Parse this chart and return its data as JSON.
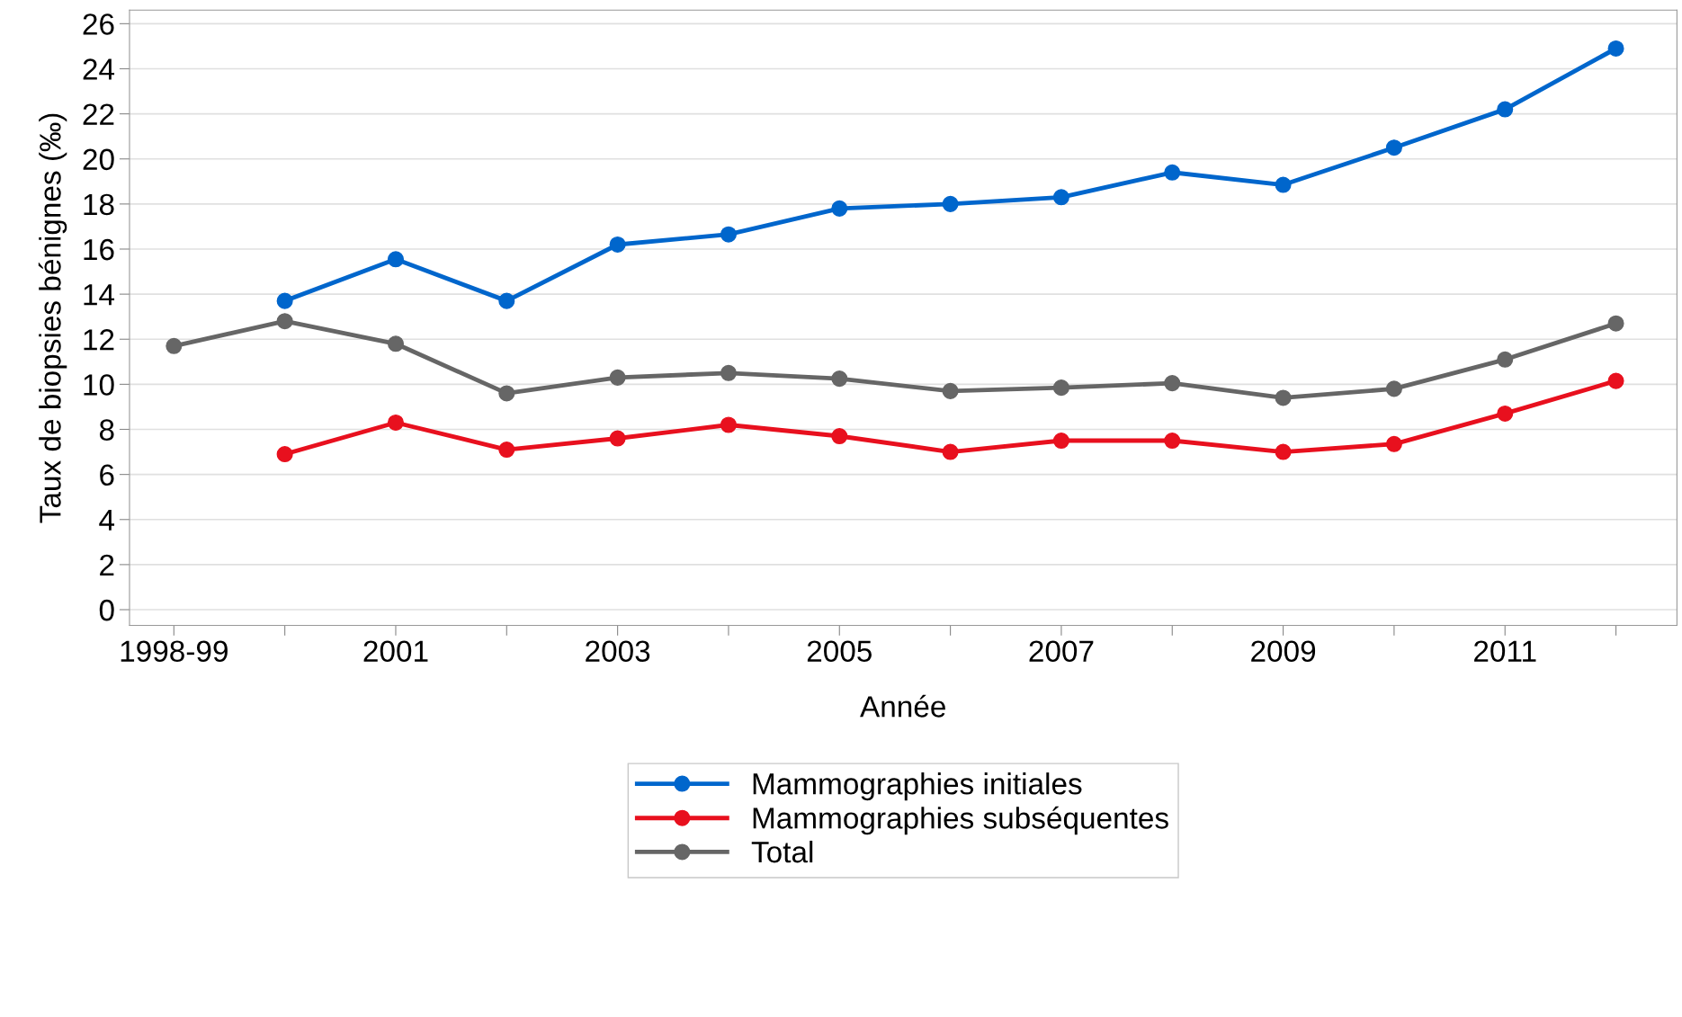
{
  "chart_data": {
    "type": "line",
    "xlabel": "Année",
    "ylabel": "Taux de biopsies bénignes (‰)",
    "categories": [
      "1998-99",
      null,
      "2001",
      null,
      "2003",
      null,
      "2005",
      null,
      "2007",
      null,
      "2009",
      null,
      "2011",
      null
    ],
    "series": [
      {
        "name": "Mammographies initiales",
        "color": "#0066cc",
        "values": [
          null,
          13.7,
          15.55,
          13.7,
          16.2,
          16.65,
          17.8,
          18.0,
          18.3,
          19.4,
          18.85,
          20.5,
          22.2,
          24.9
        ]
      },
      {
        "name": "Mammographies subséquentes",
        "color": "#e8101e",
        "values": [
          null,
          6.9,
          8.3,
          7.1,
          7.6,
          8.2,
          7.7,
          7.0,
          7.5,
          7.5,
          7.0,
          7.35,
          8.7,
          10.15
        ]
      },
      {
        "name": "Total",
        "color": "#666666",
        "values": [
          11.7,
          12.8,
          11.8,
          9.6,
          10.3,
          10.5,
          10.25,
          9.7,
          9.85,
          10.05,
          9.4,
          9.8,
          11.1,
          12.7
        ]
      }
    ],
    "ylim": [
      -0.7,
      26.6
    ],
    "yticks": [
      0,
      2,
      4,
      6,
      8,
      10,
      12,
      14,
      16,
      18,
      20,
      22,
      24,
      26
    ],
    "grid": "y",
    "legend": "bottom",
    "marker": "circle",
    "line_style": "solid"
  }
}
